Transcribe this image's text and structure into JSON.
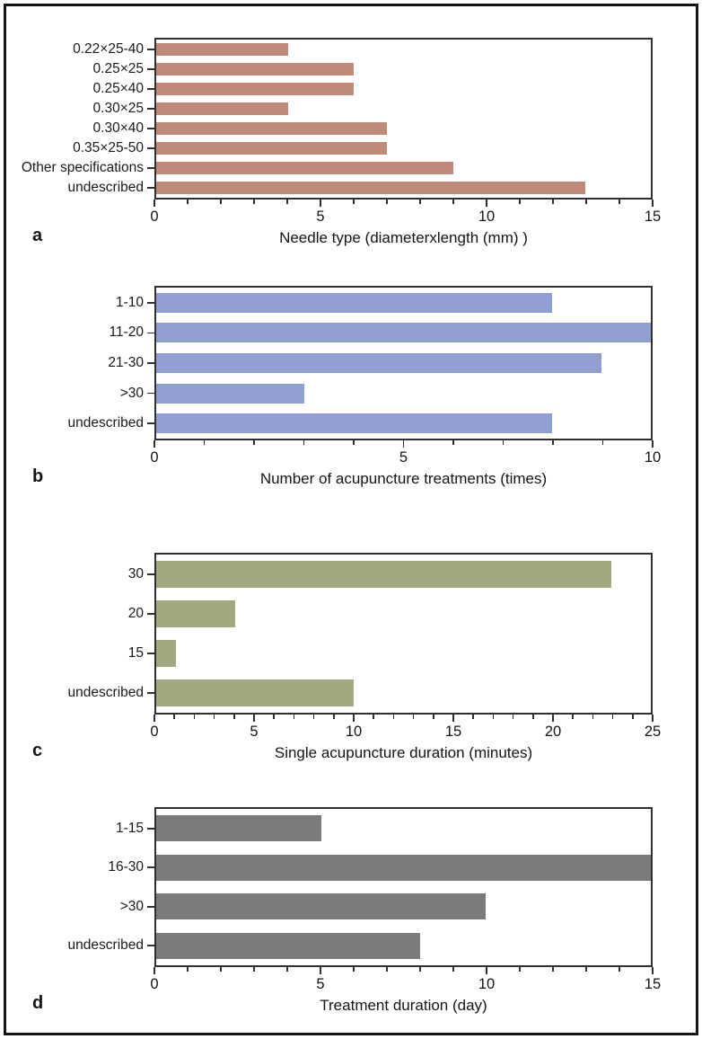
{
  "figure_title": "",
  "colors": {
    "background": "#ffffff",
    "outer_border": "#141414",
    "axis": "#2f2f2f",
    "text": "#141414"
  },
  "chart_data": [
    {
      "type": "bar",
      "orientation": "horizontal",
      "panel_label": "a",
      "xlabel": "Needle type (diameterxlength (mm) )",
      "categories": [
        "0.22×25-40",
        "0.25×25",
        "0.25×40",
        "0.30×25",
        "0.30×40",
        "0.35×25-50",
        "Other specifications",
        "undescribed"
      ],
      "values": [
        4,
        6,
        6,
        4,
        7,
        7,
        9,
        13
      ],
      "xlim": [
        0,
        15
      ],
      "xticks_major": [
        0,
        5,
        10,
        15
      ],
      "minor_tick_step": 1,
      "grid": false,
      "legend": null,
      "bar_color": "#c08a78"
    },
    {
      "type": "bar",
      "orientation": "horizontal",
      "panel_label": "b",
      "xlabel": "Number of acupuncture treatments (times)",
      "categories": [
        "1-10",
        "11-20",
        "21-30",
        ">30",
        "undescribed"
      ],
      "values": [
        8,
        10,
        9,
        3,
        8
      ],
      "xlim": [
        0,
        10
      ],
      "xticks_major": [
        0,
        5,
        10
      ],
      "minor_tick_step": 1,
      "grid": false,
      "legend": null,
      "bar_color": "#919ed1"
    },
    {
      "type": "bar",
      "orientation": "horizontal",
      "panel_label": "c",
      "xlabel": "Single acupuncture duration (minutes)",
      "categories": [
        "30",
        "20",
        "15",
        "undescribed"
      ],
      "values": [
        23,
        4,
        1,
        10
      ],
      "xlim": [
        0,
        25
      ],
      "xticks_major": [
        0,
        5,
        10,
        15,
        20,
        25
      ],
      "minor_tick_step": 1,
      "grid": false,
      "legend": null,
      "bar_color": "#a2a880"
    },
    {
      "type": "bar",
      "orientation": "horizontal",
      "panel_label": "d",
      "xlabel": "Treatment duration (day)",
      "categories": [
        "1-15",
        "16-30",
        ">30",
        "undescribed"
      ],
      "values": [
        5,
        15,
        10,
        8
      ],
      "xlim": [
        0,
        15
      ],
      "xticks_major": [
        0,
        5,
        10,
        15
      ],
      "minor_tick_step": 1,
      "grid": false,
      "legend": null,
      "bar_color": "#7b7b7b"
    }
  ]
}
